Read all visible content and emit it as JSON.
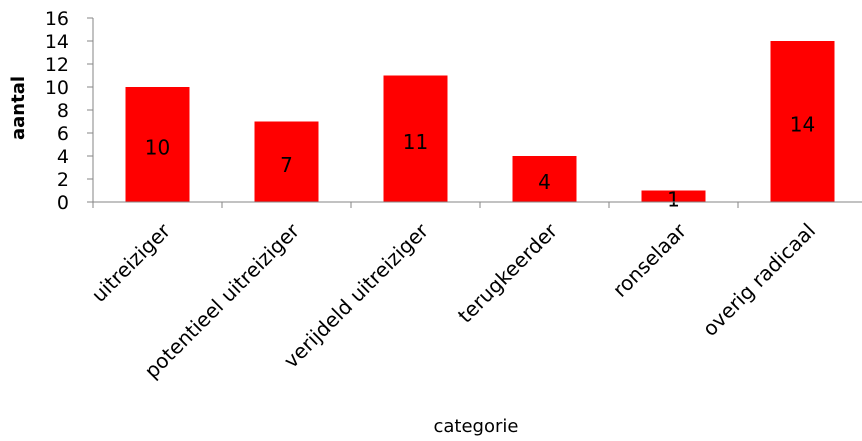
{
  "chart_data": {
    "type": "bar",
    "categories": [
      "uitreiziger",
      "potentieel uitreiziger",
      "verijdeld uitreiziger",
      "terugkeerder",
      "ronselaar",
      "overig radicaal"
    ],
    "values": [
      10,
      7,
      11,
      4,
      1,
      14
    ],
    "xlabel": "categorie",
    "ylabel": "aantal",
    "ylim": [
      0,
      16
    ],
    "yticks": [
      0,
      2,
      4,
      6,
      8,
      10,
      12,
      14,
      16
    ],
    "grid": false,
    "legend": "none",
    "data_labels": true,
    "bar_color": "#ff0000"
  }
}
